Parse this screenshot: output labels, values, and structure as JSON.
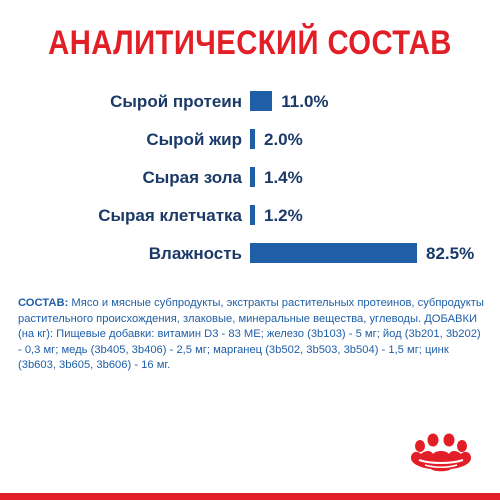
{
  "title": "АНАЛИТИЧЕСКИЙ СОСТАВ",
  "chart_data": {
    "type": "bar",
    "orientation": "horizontal",
    "title": "АНАЛИТИЧЕСКИЙ СОСТАВ",
    "categories": [
      "Сырой протеин",
      "Сырой жир",
      "Сырая зола",
      "Сырая клетчатка",
      "Влажность"
    ],
    "values": [
      11.0,
      2.0,
      1.4,
      1.2,
      82.5
    ],
    "value_labels": [
      "11.0%",
      "2.0%",
      "1.4%",
      "1.2%",
      "82.5%"
    ],
    "unit": "%",
    "xlim": [
      0,
      82.5
    ],
    "grid": false,
    "bar_color": "#1f5fa8"
  },
  "composition": {
    "label": "СОСТАВ:",
    "text": " Мясо и мясные субпродукты, экстракты растительных протеинов, субпродукты растительного происхождения, злаковые, минеральные вещества, углеводы. ДОБАВКИ (на кг): Пищевые добавки: витамин D3 - 83 МЕ; железо (3b103) - 5 мг; йод (3b201, 3b202) - 0,3 мг; медь (3b405, 3b406) - 2,5 мг; марганец (3b502, 3b503, 3b504) - 1,5 мг; цинк (3b603, 3b605, 3b606) - 16 мг."
  },
  "colors": {
    "title": "#e21e26",
    "text": "#1b3a68",
    "bar": "#1f5fa8",
    "composition_text": "#1f5fa8",
    "brand_red": "#e21e26"
  },
  "logo_icon": "royal-canin-crown-logo-icon"
}
